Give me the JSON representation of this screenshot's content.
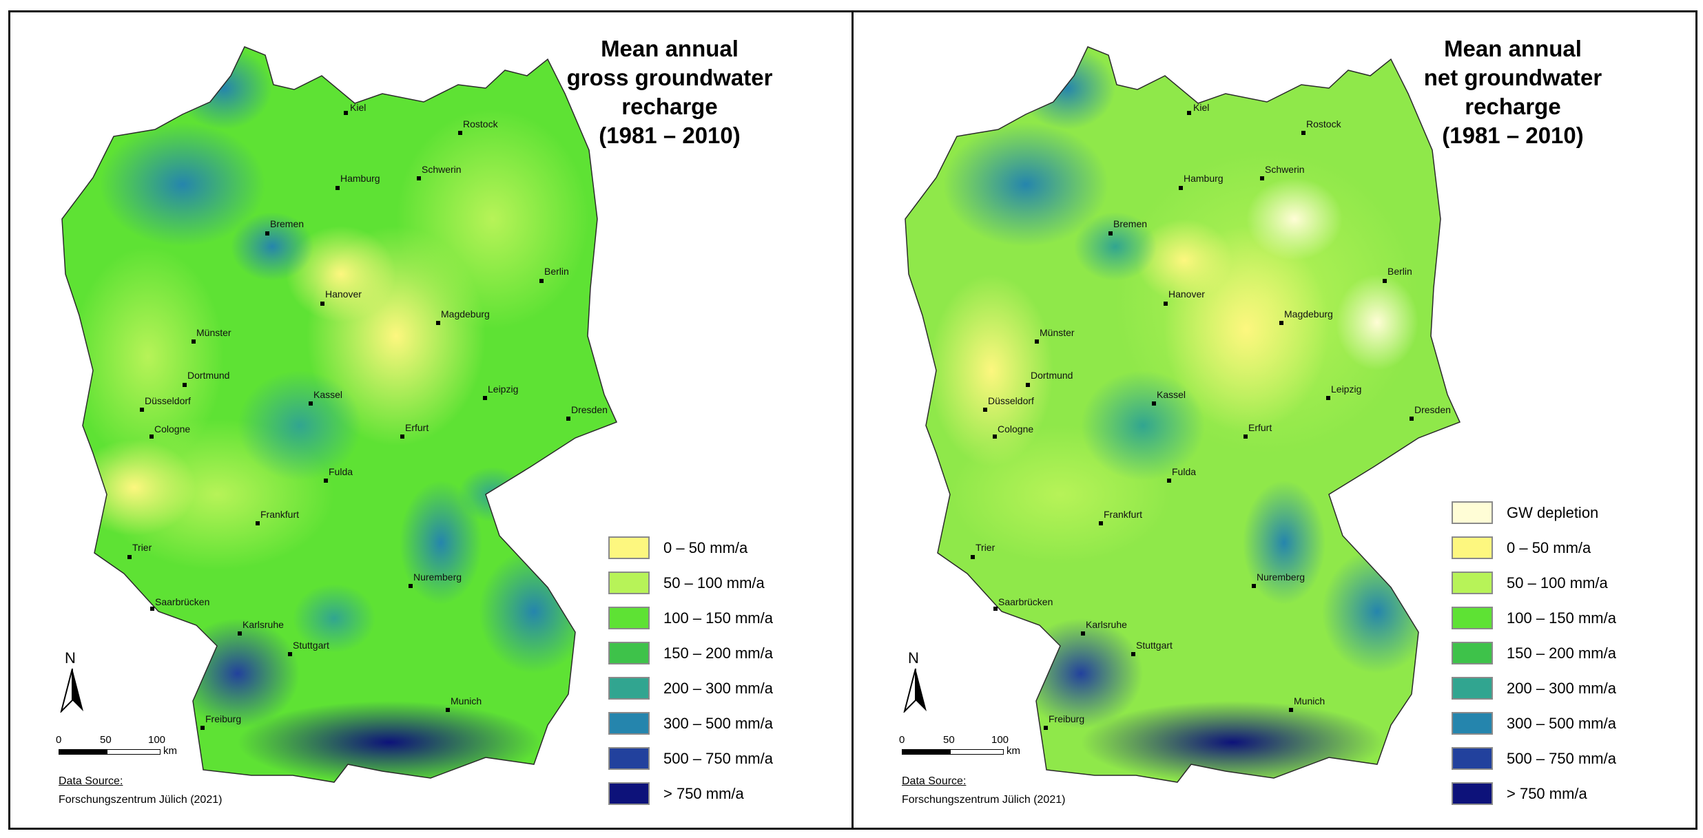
{
  "panels": [
    {
      "title_lines": [
        "Mean annual",
        "gross groundwater",
        "recharge",
        "(1981 – 2010)"
      ],
      "legend": [
        {
          "label": "0 – 50 mm/a",
          "color": "#fdf77f"
        },
        {
          "label": "50 – 100 mm/a",
          "color": "#b7f358"
        },
        {
          "label": "100 – 150 mm/a",
          "color": "#5ee234"
        },
        {
          "label": "150 – 200 mm/a",
          "color": "#3ec24a"
        },
        {
          "label": "200 – 300 mm/a",
          "color": "#31a590"
        },
        {
          "label": "300 – 500 mm/a",
          "color": "#2585ad"
        },
        {
          "label": "500 – 750 mm/a",
          "color": "#22419d"
        },
        {
          "label": "> 750 mm/a",
          "color": "#0d127a"
        }
      ],
      "source_heading": "Data Source:",
      "source_text": "Forschungszentrum Jülich (2021)"
    },
    {
      "title_lines": [
        "Mean annual",
        "net groundwater",
        "recharge",
        "(1981 – 2010)"
      ],
      "legend": [
        {
          "label": "GW depletion",
          "color": "#fffdd6"
        },
        {
          "label": "0 – 50 mm/a",
          "color": "#fdf77f"
        },
        {
          "label": "50 – 100 mm/a",
          "color": "#b7f358"
        },
        {
          "label": "100 – 150 mm/a",
          "color": "#5ee234"
        },
        {
          "label": "150 – 200 mm/a",
          "color": "#3ec24a"
        },
        {
          "label": "200 – 300 mm/a",
          "color": "#31a590"
        },
        {
          "label": "300 – 500 mm/a",
          "color": "#2585ad"
        },
        {
          "label": "500 – 750 mm/a",
          "color": "#22419d"
        },
        {
          "label": "> 750 mm/a",
          "color": "#0d127a"
        }
      ],
      "source_heading": "Data Source:",
      "source_text": "Forschungszentrum Jülich (2021)"
    }
  ],
  "cities": [
    "Kiel",
    "Rostock",
    "Hamburg",
    "Schwerin",
    "Bremen",
    "Berlin",
    "Hanover",
    "Magdeburg",
    "Münster",
    "Dortmund",
    "Düsseldorf",
    "Kassel",
    "Leipzig",
    "Dresden",
    "Cologne",
    "Erfurt",
    "Fulda",
    "Frankfurt",
    "Trier",
    "Nuremberg",
    "Saarbrücken",
    "Karlsruhe",
    "Stuttgart",
    "Munich",
    "Freiburg"
  ],
  "north_label": "N",
  "scale": {
    "ticks": [
      "0",
      "50",
      "100"
    ],
    "unit": "km"
  }
}
